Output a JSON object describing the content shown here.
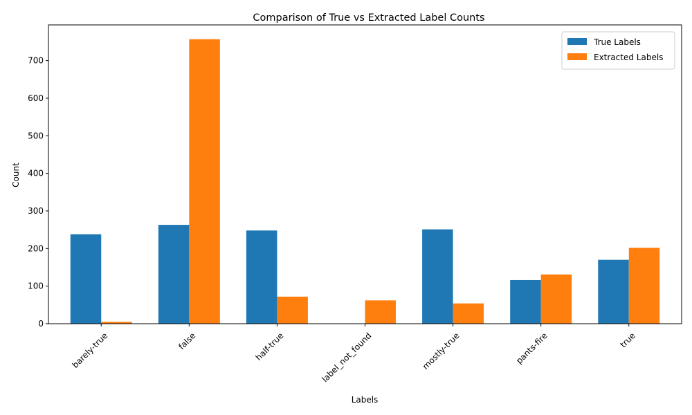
{
  "chart_data": {
    "type": "bar",
    "title": "Comparison of True vs Extracted Label Counts",
    "xlabel": "Labels",
    "ylabel": "Count",
    "categories": [
      "barely-true",
      "false",
      "half-true",
      "label_not_found",
      "mostly-true",
      "pants-fire",
      "true"
    ],
    "series": [
      {
        "name": "True Labels",
        "color": "#1f77b4",
        "values": [
          238,
          263,
          248,
          0,
          251,
          116,
          170
        ]
      },
      {
        "name": "Extracted Labels",
        "color": "#ff7f0e",
        "values": [
          5,
          757,
          72,
          62,
          54,
          131,
          202
        ]
      }
    ],
    "ylim": [
      0,
      795
    ],
    "yticks": [
      0,
      100,
      200,
      300,
      400,
      500,
      600,
      700
    ],
    "legend_position": "top-right",
    "grid": false
  }
}
